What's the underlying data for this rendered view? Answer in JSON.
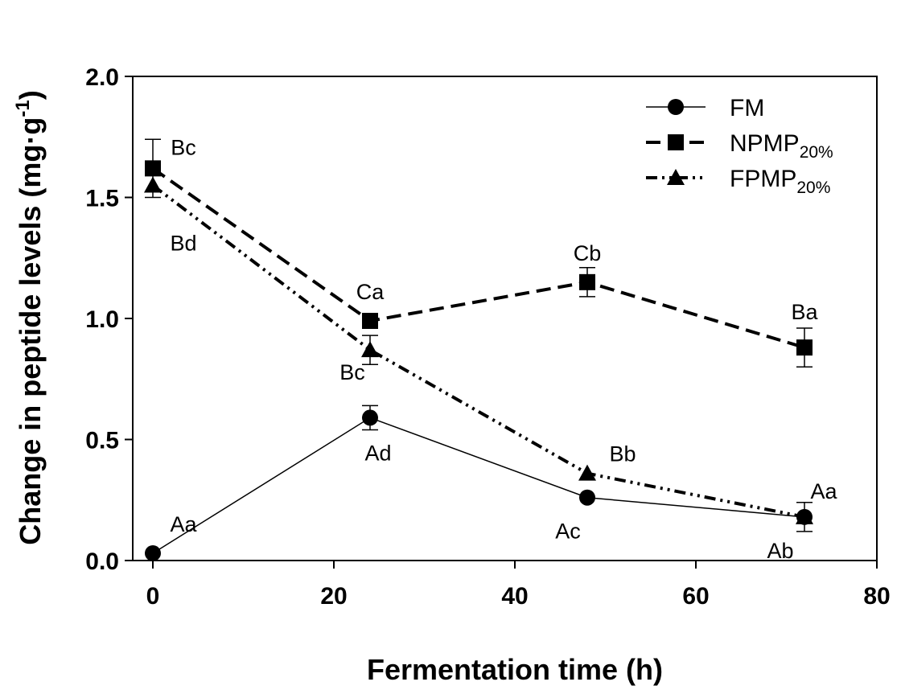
{
  "chart_data": {
    "type": "line",
    "xlabel": "Fermentation time (h)",
    "ylabel": {
      "main": "Change in peptide levels (mg·g",
      "sup": "-1",
      "close": ")"
    },
    "xlim": [
      0,
      80
    ],
    "ylim": [
      0,
      2.0
    ],
    "xticks": [
      0,
      20,
      40,
      60,
      80
    ],
    "xtick_labels": [
      "0",
      "20",
      "40",
      "60",
      "80"
    ],
    "yticks": [
      0,
      0.5,
      1.0,
      1.5,
      2.0
    ],
    "ytick_labels": [
      "0.0",
      "0.5",
      "1.0",
      "1.5",
      "2.0"
    ],
    "grid": false,
    "legend_position": "top-right",
    "x": [
      0,
      24,
      48,
      72
    ],
    "series": [
      {
        "name": "FM",
        "marker": "circle",
        "line_style": "solid",
        "values": [
          0.03,
          0.59,
          0.26,
          0.18
        ],
        "errors": [
          0,
          0.05,
          0,
          0.06
        ],
        "labels": [
          "Aa",
          "Ad",
          "Ac",
          "Ab"
        ]
      },
      {
        "name": "NPMP",
        "name_sub": "20%",
        "marker": "square",
        "line_style": "dashed",
        "values": [
          1.62,
          0.99,
          1.15,
          0.88
        ],
        "errors": [
          0.12,
          0.02,
          0.06,
          0.08
        ],
        "labels": [
          "Bc",
          "Ca",
          "Cb",
          "Ba"
        ]
      },
      {
        "name": "FPMP",
        "name_sub": "20%",
        "marker": "triangle",
        "line_style": "dash-dot-dot",
        "values": [
          1.55,
          0.87,
          0.36,
          0.18
        ],
        "errors": [
          0,
          0.06,
          0,
          0
        ],
        "labels": [
          "Bd",
          "Bc",
          "Bb",
          "Aa"
        ]
      }
    ]
  }
}
